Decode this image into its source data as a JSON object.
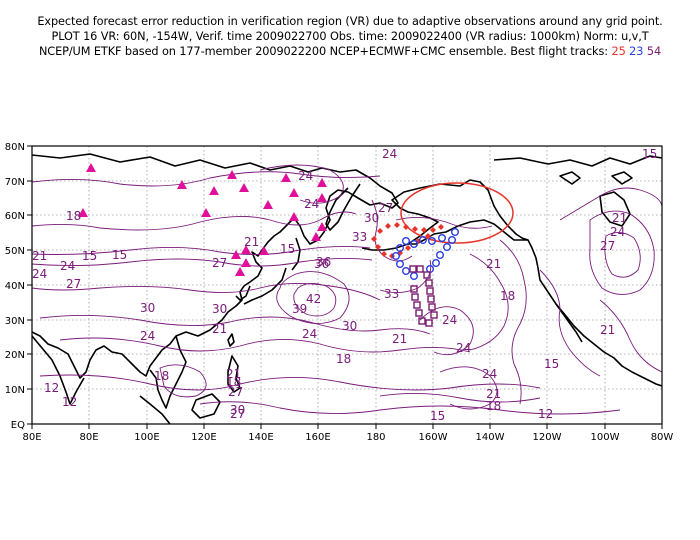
{
  "header": {
    "line1": "Expected forecast error reduction in verification region (VR) due to adaptive observations around any grid point.",
    "line2": "PLOT 16 VR: 60N, -154W, Verif. time 2009022700 Obs. time: 2009022400 (VR radius: 1000km) Norm: u,v,T",
    "line3": "NCEP/UM ETKF based on 177-member 2009022200 NCEP+ECMWF+CMC ensemble. Best flight tracks:",
    "tracks": [
      "25",
      "23",
      "54"
    ]
  },
  "colors": {
    "contour": "#7a1a7a",
    "triangles": "#e0109a",
    "track_25": "#e8332a",
    "track_23": "#2a3ee0",
    "track_54": "#7a1a6e",
    "verification_region": "#e8332a"
  },
  "map": {
    "x_ticks": [
      "80E",
      "80E",
      "100E",
      "120E",
      "140E",
      "160E",
      "180",
      "160W",
      "140W",
      "120W",
      "100W",
      "80W"
    ],
    "y_ticks": [
      "EQ",
      "10N",
      "20N",
      "30N",
      "40N",
      "50N",
      "60N",
      "70N",
      "80N"
    ],
    "contour_labels": [
      {
        "text": "15"
      },
      {
        "text": "24"
      },
      {
        "text": "27"
      },
      {
        "text": "30"
      },
      {
        "text": "33"
      },
      {
        "text": "36"
      },
      {
        "text": "42"
      },
      {
        "text": "39"
      },
      {
        "text": "30"
      },
      {
        "text": "24"
      },
      {
        "text": "21"
      },
      {
        "text": "18"
      },
      {
        "text": "12"
      },
      {
        "text": "15"
      },
      {
        "text": "21"
      },
      {
        "text": "24"
      },
      {
        "text": "27"
      },
      {
        "text": "21"
      },
      {
        "text": "18"
      },
      {
        "text": "24"
      },
      {
        "text": "30"
      },
      {
        "text": "27"
      },
      {
        "text": "24"
      },
      {
        "text": "18"
      },
      {
        "text": "21"
      },
      {
        "text": "24"
      },
      {
        "text": "15"
      },
      {
        "text": "12"
      },
      {
        "text": "15"
      },
      {
        "text": "18"
      },
      {
        "text": "21"
      },
      {
        "text": "24"
      },
      {
        "text": "27"
      },
      {
        "text": "30"
      },
      {
        "text": "21"
      },
      {
        "text": "24"
      },
      {
        "text": "21"
      },
      {
        "text": "18"
      },
      {
        "text": "15"
      },
      {
        "text": "12"
      },
      {
        "text": "21"
      },
      {
        "text": "15"
      },
      {
        "text": "24"
      },
      {
        "text": "21"
      },
      {
        "text": "18"
      },
      {
        "text": "27"
      },
      {
        "text": "24"
      },
      {
        "text": "33"
      },
      {
        "text": "27"
      },
      {
        "text": "30"
      },
      {
        "text": "36"
      },
      {
        "text": "24"
      }
    ]
  }
}
